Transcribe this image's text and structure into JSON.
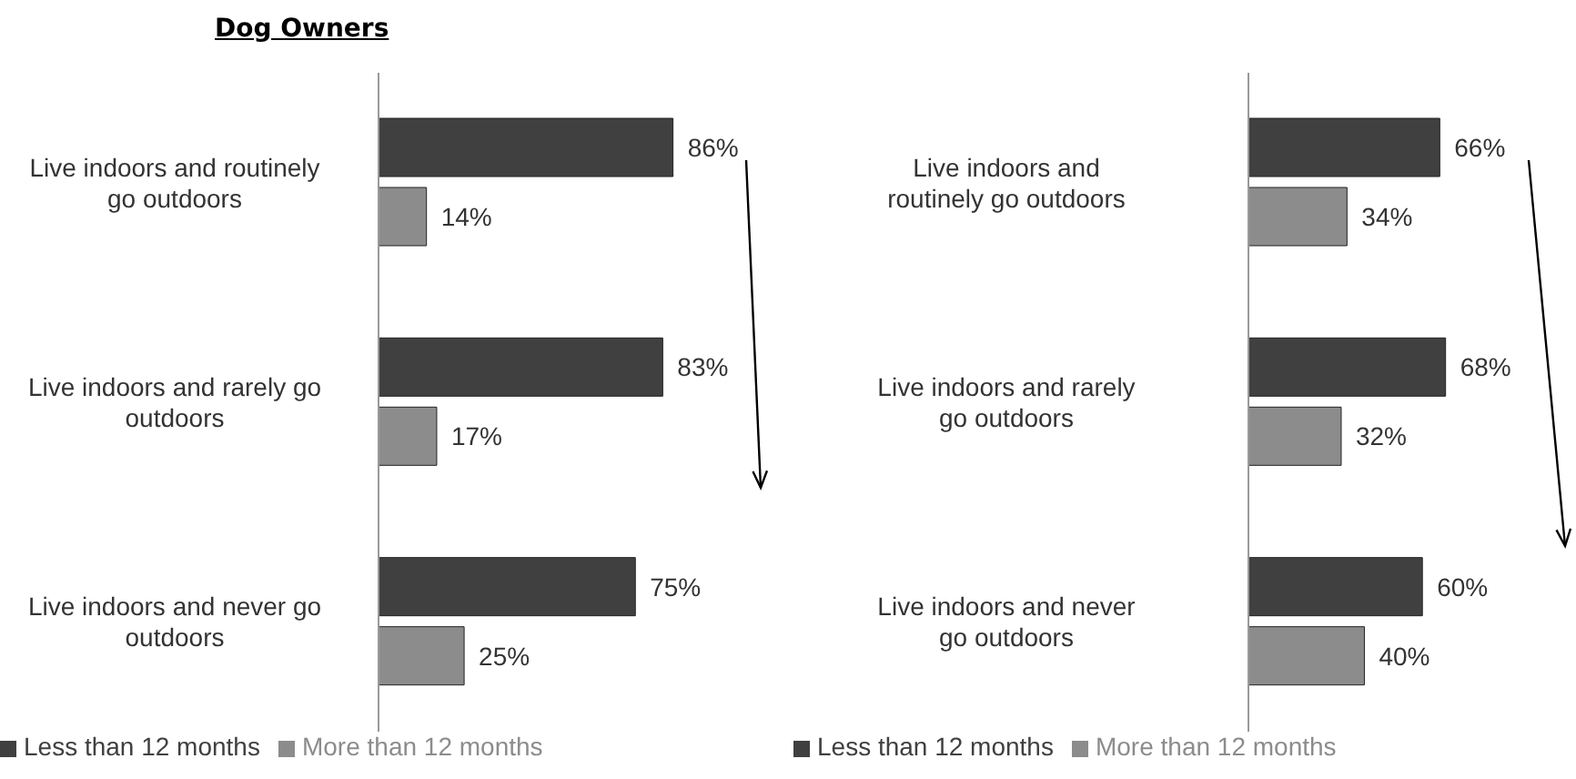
{
  "chart_data": [
    {
      "type": "bar",
      "orientation": "horizontal",
      "title": "Dog Owners",
      "categories": [
        "Live indoors and routinely go outdoors",
        "Live indoors and rarely go outdoors",
        "Live indoors and never go outdoors"
      ],
      "series": [
        {
          "name": "Less than 12 months",
          "color": "#404040",
          "values": [
            86,
            83,
            75
          ],
          "value_labels": [
            "86%",
            "83%",
            "75%"
          ]
        },
        {
          "name": "More than 12 months",
          "color": "#8c8c8c",
          "values": [
            14,
            17,
            25
          ],
          "value_labels": [
            "14%",
            "17%",
            "25%"
          ]
        }
      ],
      "legend": "bottom",
      "grid": false
    },
    {
      "type": "bar",
      "orientation": "horizontal",
      "categories": [
        "Live indoors and routinely go outdoors",
        "Live indoors and rarely go outdoors",
        "Live indoors and never go outdoors"
      ],
      "series": [
        {
          "name": "Less than 12 months",
          "color": "#404040",
          "values": [
            66,
            68,
            60
          ],
          "value_labels": [
            "66%",
            "68%",
            "60%"
          ]
        },
        {
          "name": "More than 12 months",
          "color": "#8c8c8c",
          "values": [
            34,
            32,
            40
          ],
          "value_labels": [
            "34%",
            "32%",
            "40%"
          ]
        }
      ],
      "legend": "bottom",
      "grid": false
    }
  ]
}
